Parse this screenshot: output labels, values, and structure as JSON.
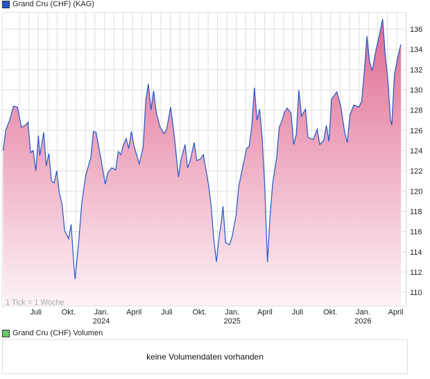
{
  "price_legend": "Grand Cru (CHF) (KAG)",
  "volume_legend": "Grand Cru (CHF) Volumen",
  "volume_message": "keine Volumendaten vorhanden",
  "tick_note": "1 Tick = 1 Woche",
  "colors": {
    "line": "#1f55c9",
    "fill_top": "#e06a92",
    "fill_bottom": "#fdf3f6",
    "price_swatch": "#1f55c9",
    "volume_swatch": "#6cc66c",
    "grid": "#dddddd"
  },
  "chart_data": {
    "type": "area",
    "title": "Grand Cru (CHF) (KAG)",
    "xlabel": "",
    "ylabel": "",
    "ylim": [
      109,
      138
    ],
    "yticks": [
      110,
      112,
      114,
      116,
      118,
      120,
      122,
      124,
      126,
      128,
      130,
      132,
      134,
      136
    ],
    "xticks": [
      {
        "t": 2023.5,
        "label": "Juli",
        "year": ""
      },
      {
        "t": 2023.75,
        "label": "Okt.",
        "year": ""
      },
      {
        "t": 2024.0,
        "label": "Jan.",
        "year": "2024"
      },
      {
        "t": 2024.25,
        "label": "April",
        "year": ""
      },
      {
        "t": 2024.5,
        "label": "Juli",
        "year": ""
      },
      {
        "t": 2024.75,
        "label": "Okt.",
        "year": ""
      },
      {
        "t": 2025.0,
        "label": "Jan.",
        "year": "2025"
      },
      {
        "t": 2025.25,
        "label": "April",
        "year": ""
      },
      {
        "t": 2025.5,
        "label": "Juli",
        "year": ""
      },
      {
        "t": 2025.75,
        "label": "Okt.",
        "year": ""
      },
      {
        "t": 2026.0,
        "label": "Jan.",
        "year": "2026"
      },
      {
        "t": 2026.25,
        "label": "April",
        "year": ""
      }
    ],
    "grid": true,
    "series": [
      {
        "name": "Grand Cru (CHF)",
        "points": [
          [
            2023.25,
            124
          ],
          [
            2023.27,
            126
          ],
          [
            2023.3,
            127
          ],
          [
            2023.33,
            128.4
          ],
          [
            2023.36,
            128.3
          ],
          [
            2023.39,
            126.3
          ],
          [
            2023.43,
            126.6
          ],
          [
            2023.44,
            126.8
          ],
          [
            2023.46,
            123.8
          ],
          [
            2023.48,
            124
          ],
          [
            2023.5,
            122
          ],
          [
            2023.52,
            125.5
          ],
          [
            2023.53,
            123.5
          ],
          [
            2023.56,
            125.8
          ],
          [
            2023.58,
            122.5
          ],
          [
            2023.6,
            123.7
          ],
          [
            2023.62,
            121
          ],
          [
            2023.64,
            120.8
          ],
          [
            2023.66,
            122
          ],
          [
            2023.68,
            119.8
          ],
          [
            2023.7,
            118.7
          ],
          [
            2023.72,
            116.1
          ],
          [
            2023.75,
            115.3
          ],
          [
            2023.77,
            116.7
          ],
          [
            2023.79,
            112.8
          ],
          [
            2023.8,
            111.3
          ],
          [
            2023.83,
            115.3
          ],
          [
            2023.85,
            118.7
          ],
          [
            2023.88,
            121.5
          ],
          [
            2023.92,
            123.3
          ],
          [
            2023.94,
            125.9
          ],
          [
            2023.96,
            125.8
          ],
          [
            2024.0,
            123
          ],
          [
            2024.03,
            120.7
          ],
          [
            2024.05,
            121.8
          ],
          [
            2024.08,
            122.3
          ],
          [
            2024.11,
            122.1
          ],
          [
            2024.13,
            123.9
          ],
          [
            2024.15,
            123.6
          ],
          [
            2024.17,
            124.6
          ],
          [
            2024.19,
            125.2
          ],
          [
            2024.21,
            124.2
          ],
          [
            2024.23,
            125.9
          ],
          [
            2024.25,
            124.5
          ],
          [
            2024.29,
            122.7
          ],
          [
            2024.32,
            124.3
          ],
          [
            2024.34,
            129
          ],
          [
            2024.36,
            130.6
          ],
          [
            2024.38,
            128
          ],
          [
            2024.4,
            129.9
          ],
          [
            2024.42,
            127.8
          ],
          [
            2024.45,
            126.3
          ],
          [
            2024.48,
            125.7
          ],
          [
            2024.5,
            126.1
          ],
          [
            2024.53,
            128.3
          ],
          [
            2024.56,
            125.2
          ],
          [
            2024.59,
            121.4
          ],
          [
            2024.61,
            123.1
          ],
          [
            2024.64,
            124.6
          ],
          [
            2024.66,
            122.3
          ],
          [
            2024.68,
            123
          ],
          [
            2024.71,
            124.8
          ],
          [
            2024.73,
            123
          ],
          [
            2024.76,
            123.2
          ],
          [
            2024.78,
            123.6
          ],
          [
            2024.82,
            120.6
          ],
          [
            2024.84,
            118.5
          ],
          [
            2024.86,
            115.2
          ],
          [
            2024.88,
            113
          ],
          [
            2024.9,
            115.4
          ],
          [
            2024.92,
            117.2
          ],
          [
            2024.93,
            118.5
          ],
          [
            2024.95,
            114.9
          ],
          [
            2024.98,
            114.7
          ],
          [
            2025.0,
            115.5
          ],
          [
            2025.03,
            117.6
          ],
          [
            2025.05,
            120.4
          ],
          [
            2025.07,
            121.7
          ],
          [
            2025.11,
            124.2
          ],
          [
            2025.13,
            124.4
          ],
          [
            2025.15,
            126.4
          ],
          [
            2025.17,
            130.2
          ],
          [
            2025.19,
            127
          ],
          [
            2025.21,
            128.1
          ],
          [
            2025.23,
            125.2
          ],
          [
            2025.25,
            120.2
          ],
          [
            2025.27,
            113
          ],
          [
            2025.29,
            117.6
          ],
          [
            2025.31,
            120.8
          ],
          [
            2025.34,
            123.3
          ],
          [
            2025.36,
            126.3
          ],
          [
            2025.38,
            126.9
          ],
          [
            2025.4,
            127.8
          ],
          [
            2025.42,
            128.2
          ],
          [
            2025.45,
            127.7
          ],
          [
            2025.47,
            124.6
          ],
          [
            2025.49,
            125.6
          ],
          [
            2025.51,
            130
          ],
          [
            2025.53,
            127.4
          ],
          [
            2025.56,
            128.1
          ],
          [
            2025.58,
            125.3
          ],
          [
            2025.62,
            125.1
          ],
          [
            2025.65,
            126.1
          ],
          [
            2025.67,
            124.6
          ],
          [
            2025.7,
            125
          ],
          [
            2025.72,
            126.5
          ],
          [
            2025.74,
            124.9
          ],
          [
            2025.76,
            129.1
          ],
          [
            2025.8,
            129.8
          ],
          [
            2025.83,
            128.4
          ],
          [
            2025.86,
            125.8
          ],
          [
            2025.88,
            124.8
          ],
          [
            2025.9,
            127.5
          ],
          [
            2025.93,
            128.5
          ],
          [
            2025.97,
            128.3
          ],
          [
            2025.99,
            128.9
          ],
          [
            2026.01,
            131.8
          ],
          [
            2026.03,
            135.3
          ],
          [
            2026.05,
            132.8
          ],
          [
            2026.07,
            131.9
          ],
          [
            2026.1,
            134
          ],
          [
            2026.13,
            135.7
          ],
          [
            2026.15,
            137
          ],
          [
            2026.17,
            133.4
          ],
          [
            2026.19,
            131
          ],
          [
            2026.21,
            127
          ],
          [
            2026.22,
            126.5
          ],
          [
            2026.24,
            131.5
          ],
          [
            2026.27,
            133.5
          ],
          [
            2026.29,
            134.5
          ]
        ]
      }
    ]
  }
}
